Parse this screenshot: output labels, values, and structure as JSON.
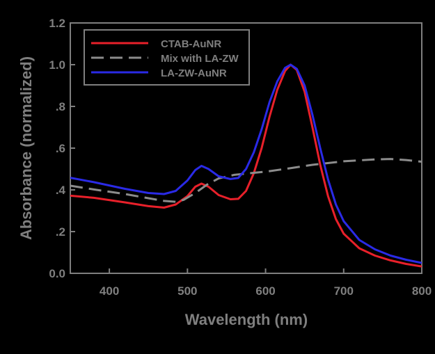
{
  "colors": {
    "background": "#000000",
    "axis": "#7f7f7f",
    "text": "#7f7f7f",
    "ctab": "#e8202a",
    "mix": "#8c8c8c",
    "lazw": "#2a2ae6"
  },
  "chart_data": {
    "type": "line",
    "title": "",
    "xlabel": "Wavelength (nm)",
    "ylabel": "Absorbance (normalized)",
    "xlim": [
      350,
      800
    ],
    "ylim": [
      0.0,
      1.2
    ],
    "x_ticks": [
      400,
      500,
      600,
      700,
      800
    ],
    "x_tick_labels": [
      "400",
      "500",
      "600",
      "700",
      "800"
    ],
    "y_ticks": [
      0.0,
      0.2,
      0.4,
      0.6,
      0.8,
      1.0,
      1.2
    ],
    "y_tick_labels": [
      "0.0",
      ".2",
      ".4",
      ".6",
      ".8",
      "1.0",
      "1.2"
    ],
    "grid": false,
    "legend_position": "top-left",
    "series": [
      {
        "name": "CTAB-AuNR",
        "color": "#e8202a",
        "dash": "solid",
        "points": [
          [
            350,
            0.372
          ],
          [
            380,
            0.362
          ],
          [
            420,
            0.34
          ],
          [
            450,
            0.322
          ],
          [
            470,
            0.315
          ],
          [
            485,
            0.33
          ],
          [
            500,
            0.37
          ],
          [
            510,
            0.415
          ],
          [
            518,
            0.43
          ],
          [
            527,
            0.415
          ],
          [
            540,
            0.375
          ],
          [
            555,
            0.355
          ],
          [
            565,
            0.357
          ],
          [
            575,
            0.395
          ],
          [
            585,
            0.48
          ],
          [
            595,
            0.6
          ],
          [
            605,
            0.75
          ],
          [
            615,
            0.88
          ],
          [
            625,
            0.97
          ],
          [
            632,
            1.0
          ],
          [
            640,
            0.975
          ],
          [
            650,
            0.87
          ],
          [
            660,
            0.7
          ],
          [
            670,
            0.52
          ],
          [
            680,
            0.37
          ],
          [
            690,
            0.26
          ],
          [
            700,
            0.19
          ],
          [
            720,
            0.12
          ],
          [
            740,
            0.085
          ],
          [
            760,
            0.062
          ],
          [
            780,
            0.045
          ],
          [
            800,
            0.033
          ]
        ]
      },
      {
        "name": "Mix with LA-ZW",
        "color": "#8c8c8c",
        "dash": "dashed",
        "points": [
          [
            350,
            0.42
          ],
          [
            380,
            0.402
          ],
          [
            420,
            0.38
          ],
          [
            450,
            0.36
          ],
          [
            470,
            0.347
          ],
          [
            485,
            0.343
          ],
          [
            495,
            0.352
          ],
          [
            510,
            0.385
          ],
          [
            525,
            0.425
          ],
          [
            540,
            0.455
          ],
          [
            560,
            0.472
          ],
          [
            580,
            0.48
          ],
          [
            600,
            0.487
          ],
          [
            630,
            0.503
          ],
          [
            660,
            0.52
          ],
          [
            700,
            0.537
          ],
          [
            740,
            0.546
          ],
          [
            760,
            0.548
          ],
          [
            780,
            0.543
          ],
          [
            800,
            0.535
          ]
        ]
      },
      {
        "name": "LA-ZW-AuNR",
        "color": "#2a2ae6",
        "dash": "solid",
        "points": [
          [
            350,
            0.458
          ],
          [
            380,
            0.437
          ],
          [
            420,
            0.405
          ],
          [
            450,
            0.385
          ],
          [
            470,
            0.38
          ],
          [
            485,
            0.395
          ],
          [
            500,
            0.445
          ],
          [
            510,
            0.495
          ],
          [
            518,
            0.515
          ],
          [
            527,
            0.5
          ],
          [
            540,
            0.465
          ],
          [
            555,
            0.452
          ],
          [
            565,
            0.457
          ],
          [
            575,
            0.5
          ],
          [
            585,
            0.58
          ],
          [
            595,
            0.69
          ],
          [
            605,
            0.82
          ],
          [
            615,
            0.92
          ],
          [
            625,
            0.985
          ],
          [
            632,
            1.0
          ],
          [
            640,
            0.98
          ],
          [
            650,
            0.9
          ],
          [
            660,
            0.76
          ],
          [
            670,
            0.6
          ],
          [
            680,
            0.45
          ],
          [
            690,
            0.33
          ],
          [
            700,
            0.25
          ],
          [
            720,
            0.16
          ],
          [
            740,
            0.115
          ],
          [
            760,
            0.085
          ],
          [
            780,
            0.065
          ],
          [
            800,
            0.05
          ]
        ]
      }
    ]
  }
}
